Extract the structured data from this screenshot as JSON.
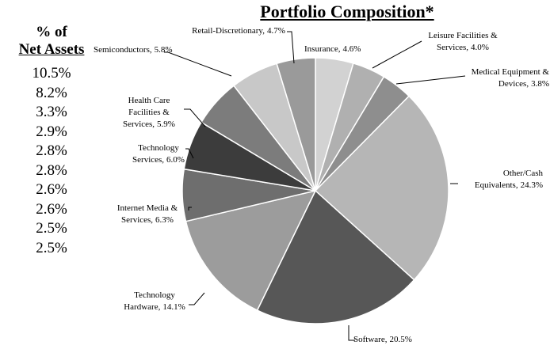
{
  "net_assets": {
    "header": [
      "% of",
      "Net Assets"
    ],
    "values": [
      "10.5%",
      "8.2%",
      "3.3%",
      "2.9%",
      "2.8%",
      "2.8%",
      "2.6%",
      "2.6%",
      "2.5%",
      "2.5%"
    ]
  },
  "chart_data": {
    "type": "pie",
    "title": "Portfolio Composition*",
    "categories": [
      "Insurance,",
      "Leisure Facilities & Services,",
      "Medical Equipment & Devices,",
      "Other/Cash Equivalents,",
      "Software,",
      "Technology Hardware,",
      "Internet Media & Services,",
      "Technology Services,",
      "Health Care Facilities & Services,",
      "Semiconductors,",
      "Retail-Discretionary,"
    ],
    "values": [
      4.6,
      4.0,
      3.8,
      24.3,
      20.5,
      14.1,
      6.3,
      6.0,
      5.9,
      5.8,
      4.7
    ],
    "value_labels": [
      "4.6%",
      "4.0%",
      "3.8%",
      "24.3%",
      "20.5%",
      "14.1%",
      "6.3%",
      "6.0%",
      "5.9%",
      "5.8%",
      "4.7%"
    ],
    "colors": [
      "#d2d2d2",
      "#b0b0b0",
      "#8e8e8e",
      "#b6b6b6",
      "#575757",
      "#9c9c9c",
      "#6e6e6e",
      "#3c3c3c",
      "#7c7c7c",
      "#c8c8c8",
      "#9a9a9a"
    ]
  }
}
